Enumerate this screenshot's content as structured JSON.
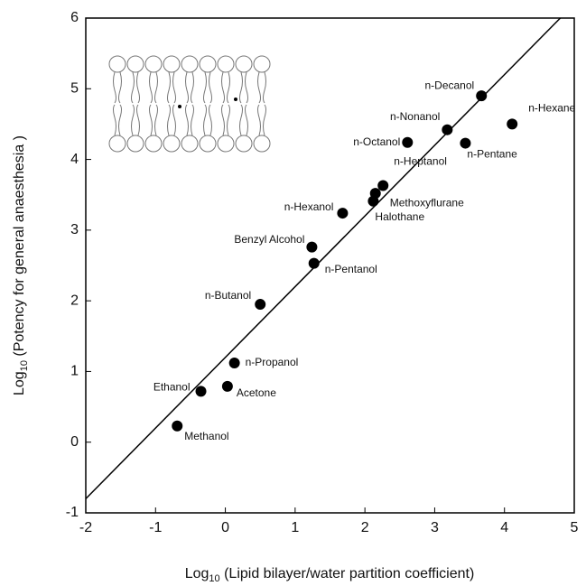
{
  "chart_data": {
    "type": "scatter",
    "xlabel": {
      "main": "Log",
      "sub": "10",
      "rest": " (Lipid bilayer/water partition coefficient)"
    },
    "ylabel": {
      "main": "Log",
      "sub": "10",
      "rest": " (Potency for general anaesthesia )"
    },
    "xlim": [
      -2,
      5
    ],
    "ylim": [
      -1,
      6
    ],
    "xticks": [
      -2,
      -1,
      0,
      1,
      2,
      3,
      4,
      5
    ],
    "yticks": [
      -1,
      0,
      1,
      2,
      3,
      4,
      5,
      6
    ],
    "color": "#000000",
    "points": {
      "names": [
        "Methanol",
        "Ethanol",
        "Acetone",
        "n-Propanol",
        "n-Butanol",
        "Benzyl Alcohol",
        "n-Pentanol",
        "n-Hexanol",
        "Halothane",
        "Methoxyflurane",
        "n-Heptanol",
        "n-Octanol",
        "n-Nonanol",
        "n-Pentane",
        "n-Decanol",
        "n-Hexane"
      ],
      "x": [
        -0.69,
        -0.35,
        0.03,
        0.13,
        0.5,
        1.24,
        1.27,
        1.68,
        2.12,
        2.15,
        2.26,
        2.61,
        3.18,
        3.44,
        3.67,
        4.11
      ],
      "y": [
        0.23,
        0.72,
        0.79,
        1.12,
        1.95,
        2.76,
        2.53,
        3.24,
        3.41,
        3.52,
        3.63,
        4.24,
        4.42,
        4.23,
        4.9,
        4.5
      ]
    },
    "fit_line": {
      "x": [
        -2,
        4.8
      ],
      "y": [
        -0.8,
        6
      ]
    }
  }
}
